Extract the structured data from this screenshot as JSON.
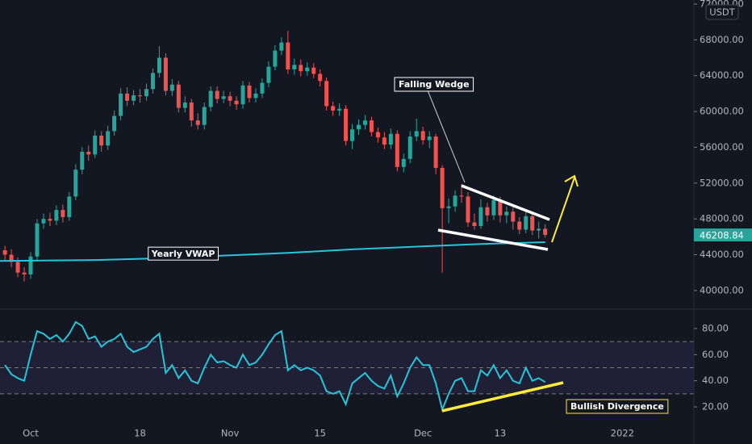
{
  "chart_data": [
    {
      "type": "candlestick",
      "currency": "USDT",
      "last_price": 46208.84,
      "up_color": "#26a69a",
      "down_color": "#ef5350",
      "xlim": [
        -4.77,
        103.13
      ],
      "ylim": [
        37915,
        72450
      ],
      "yticks": [
        {
          "value": 40000,
          "label": "40000.00"
        },
        {
          "value": 44000,
          "label": "44000.00"
        },
        {
          "value": 48000,
          "label": "48000.00"
        },
        {
          "value": 52000,
          "label": "52000.00"
        },
        {
          "value": 56000,
          "label": "56000.00"
        },
        {
          "value": 60000,
          "label": "60000.00"
        },
        {
          "value": 64000,
          "label": "64000.00"
        },
        {
          "value": 68000,
          "label": "68000.00"
        },
        {
          "value": 72000,
          "label": "72000.00"
        }
      ],
      "x": [
        -4,
        -3,
        -2,
        -1,
        0,
        1,
        2,
        3,
        4,
        5,
        6,
        7,
        8,
        9,
        10,
        11,
        12,
        13,
        14,
        15,
        16,
        17,
        18,
        19,
        20,
        21,
        22,
        23,
        24,
        25,
        26,
        27,
        28,
        29,
        30,
        31,
        32,
        33,
        34,
        35,
        36,
        37,
        38,
        39,
        40,
        41,
        42,
        43,
        44,
        45,
        46,
        47,
        48,
        49,
        50,
        51,
        52,
        53,
        54,
        55,
        56,
        57,
        58,
        59,
        60,
        61,
        62,
        63,
        64,
        65,
        66,
        67,
        68,
        69,
        70,
        71,
        72,
        73,
        74,
        75,
        76,
        77,
        78,
        79,
        80
      ],
      "open": [
        44500,
        44000,
        43200,
        42000,
        41800,
        43800,
        47500,
        48000,
        47800,
        49000,
        48200,
        50500,
        53500,
        55500,
        55200,
        57300,
        56200,
        57800,
        59500,
        62000,
        61200,
        61800,
        61700,
        62500,
        64300,
        66000,
        62300,
        63000,
        60400,
        61000,
        59000,
        58500,
        60500,
        62300,
        61400,
        61700,
        61200,
        60800,
        62900,
        61500,
        62000,
        63200,
        65000,
        66800,
        67700,
        64700,
        65200,
        64500,
        64900,
        64200,
        63400,
        60600,
        60100,
        60300,
        56700,
        58000,
        58500,
        59000,
        57700,
        57100,
        56300,
        57500,
        53800,
        54700,
        57200,
        57800,
        56800,
        57200,
        53700,
        49200,
        49400,
        50600,
        50500,
        47600,
        47200,
        49300,
        48400,
        50100,
        48400,
        48800,
        47700,
        46800,
        48300,
        46700,
        46900
      ],
      "high": [
        45000,
        44600,
        43700,
        42600,
        44300,
        48000,
        48600,
        48700,
        49500,
        49600,
        51000,
        54100,
        56000,
        56200,
        57900,
        57800,
        58400,
        60100,
        62600,
        62700,
        62400,
        62500,
        63100,
        64800,
        67300,
        66500,
        63600,
        63400,
        61700,
        61400,
        59800,
        61000,
        62800,
        62800,
        62300,
        62200,
        61700,
        63400,
        63300,
        62600,
        63700,
        65600,
        67400,
        68300,
        69000,
        65900,
        65800,
        65500,
        65400,
        64700,
        63800,
        61100,
        60900,
        60700,
        58600,
        59100,
        59600,
        59400,
        58200,
        57700,
        58100,
        57900,
        55300,
        57800,
        59200,
        58300,
        57800,
        57500,
        54000,
        50300,
        51200,
        51900,
        51000,
        48600,
        50200,
        49800,
        50600,
        50500,
        49400,
        49300,
        48200,
        48900,
        48700,
        47700,
        47400
      ],
      "low": [
        43300,
        42600,
        41500,
        41000,
        41300,
        43400,
        46900,
        47200,
        47300,
        47600,
        47800,
        50100,
        53000,
        54500,
        54800,
        55500,
        55700,
        57300,
        59000,
        60600,
        60700,
        61000,
        61200,
        62000,
        63800,
        61800,
        61700,
        59900,
        59900,
        58300,
        58000,
        58000,
        60000,
        60900,
        60900,
        60600,
        60200,
        60300,
        61000,
        61000,
        61500,
        62700,
        64600,
        66300,
        64200,
        64100,
        63900,
        64000,
        63700,
        62800,
        60100,
        59500,
        59500,
        56200,
        55800,
        57400,
        58000,
        57200,
        56500,
        55800,
        55800,
        53300,
        53200,
        54200,
        56700,
        56300,
        55900,
        53000,
        42000,
        47500,
        48800,
        49800,
        47100,
        46800,
        46900,
        47700,
        47900,
        47600,
        47500,
        46800,
        46300,
        46400,
        46200,
        45800,
        45900
      ],
      "close": [
        44000,
        43200,
        42000,
        41800,
        43800,
        47500,
        48000,
        47800,
        49000,
        48200,
        50500,
        53500,
        55500,
        55200,
        57300,
        56200,
        57800,
        59500,
        62000,
        61200,
        61800,
        61700,
        62500,
        64300,
        66000,
        62300,
        63000,
        60400,
        61000,
        59000,
        58500,
        60500,
        62300,
        61400,
        61700,
        61200,
        60800,
        62900,
        61500,
        62000,
        63200,
        65000,
        66800,
        67700,
        64700,
        65200,
        64500,
        64900,
        64200,
        63400,
        60600,
        60100,
        60300,
        56700,
        58000,
        58500,
        59000,
        57700,
        57100,
        56300,
        57500,
        53800,
        54700,
        57200,
        57800,
        56800,
        57200,
        53700,
        49200,
        49400,
        50600,
        50500,
        47600,
        47200,
        49300,
        48400,
        50100,
        48400,
        48800,
        47700,
        46800,
        48300,
        46700,
        46900,
        46208.84
      ],
      "overlays": [
        {
          "name": "Yearly VWAP",
          "color": "#26c6da",
          "x": [
            -4.77,
            10,
            20,
            30,
            40,
            50,
            60,
            70,
            80
          ],
          "values": [
            43300,
            43400,
            43600,
            43900,
            44200,
            44600,
            44900,
            45200,
            45400
          ]
        }
      ],
      "annotations": [
        {
          "text": "Falling Wedge"
        }
      ]
    },
    {
      "type": "line",
      "color": "#26c6da",
      "band_color": "rgba(126,87,194,0.12)",
      "levels": [
        30,
        50,
        70
      ],
      "xlim": [
        -4.77,
        103.13
      ],
      "ylim": [
        8.9,
        94.8
      ],
      "yticks": [
        {
          "value": 20,
          "label": "20.00"
        },
        {
          "value": 40,
          "label": "40.00"
        },
        {
          "value": 60,
          "label": "60.00"
        },
        {
          "value": 80,
          "label": "80.00"
        }
      ],
      "xticks": [
        {
          "value": 0,
          "label": "Oct"
        },
        {
          "value": 17,
          "label": "18"
        },
        {
          "value": 31,
          "label": "Nov"
        },
        {
          "value": 45,
          "label": "15"
        },
        {
          "value": 61,
          "label": "Dec"
        },
        {
          "value": 73,
          "label": "13"
        },
        {
          "value": 92,
          "label": "2022"
        }
      ],
      "x": [
        -4,
        -3,
        -2,
        -1,
        0,
        1,
        2,
        3,
        4,
        5,
        6,
        7,
        8,
        9,
        10,
        11,
        12,
        13,
        14,
        15,
        16,
        17,
        18,
        19,
        20,
        21,
        22,
        23,
        24,
        25,
        26,
        27,
        28,
        29,
        30,
        31,
        32,
        33,
        34,
        35,
        36,
        37,
        38,
        39,
        40,
        41,
        42,
        43,
        44,
        45,
        46,
        47,
        48,
        49,
        50,
        51,
        52,
        53,
        54,
        55,
        56,
        57,
        58,
        59,
        60,
        61,
        62,
        63,
        64,
        65,
        66,
        67,
        68,
        69,
        70,
        71,
        72,
        73,
        74,
        75,
        76,
        77,
        78,
        79,
        80
      ],
      "values": [
        52,
        45,
        42,
        40,
        60,
        78,
        76,
        72,
        75,
        70,
        76,
        85,
        82,
        72,
        74,
        66,
        70,
        72,
        76,
        66,
        62,
        64,
        66,
        72,
        76,
        46,
        52,
        42,
        48,
        40,
        38,
        50,
        60,
        54,
        55,
        52,
        50,
        60,
        52,
        54,
        60,
        68,
        75,
        78,
        48,
        52,
        48,
        50,
        48,
        44,
        32,
        30,
        32,
        22,
        38,
        42,
        46,
        40,
        36,
        34,
        44,
        28,
        38,
        50,
        58,
        52,
        52,
        38,
        18,
        30,
        40,
        42,
        32,
        32,
        48,
        44,
        52,
        42,
        48,
        40,
        38,
        50,
        40,
        42,
        39
      ],
      "annotations": [
        {
          "text": "Bullish Divergence"
        }
      ]
    }
  ]
}
